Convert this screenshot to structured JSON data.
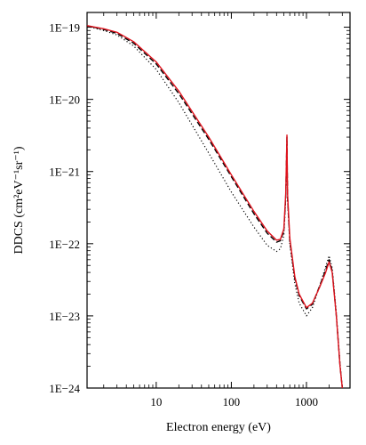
{
  "chart_data": {
    "type": "line",
    "xlabel": "Electron energy (eV)",
    "ylabel": "DDCS (cm²eV⁻¹sr⁻¹)",
    "xscale": "log",
    "yscale": "log",
    "xlim": [
      1.2,
      3800
    ],
    "ylim": [
      1e-24,
      1.6e-19
    ],
    "x_ticks": [
      {
        "value": 10,
        "label": "10"
      },
      {
        "value": 100,
        "label": "100"
      },
      {
        "value": 1000,
        "label": "1000"
      }
    ],
    "y_ticks": [
      {
        "value": 1e-19,
        "label": "1E−19"
      },
      {
        "value": 1e-20,
        "label": "1E−20"
      },
      {
        "value": 1e-21,
        "label": "1E−21"
      },
      {
        "value": 1e-22,
        "label": "1E−22"
      },
      {
        "value": 1e-23,
        "label": "1E−23"
      },
      {
        "value": 1e-24,
        "label": "1E−24"
      }
    ],
    "grid": false,
    "series": [
      {
        "style": "solid",
        "color": "#e0141e",
        "points": [
          [
            1.2,
            1.05e-19
          ],
          [
            2,
            9.5e-20
          ],
          [
            3,
            8.5e-20
          ],
          [
            5,
            6.3e-20
          ],
          [
            10,
            3.3e-20
          ],
          [
            20,
            1.3e-20
          ],
          [
            50,
            3e-21
          ],
          [
            100,
            9e-22
          ],
          [
            200,
            2.8e-22
          ],
          [
            300,
            1.5e-22
          ],
          [
            400,
            1.12e-22
          ],
          [
            450,
            1.15e-22
          ],
          [
            500,
            1.6e-22
          ],
          [
            530,
            5e-22
          ],
          [
            550,
            3.2e-21
          ],
          [
            560,
            5e-22
          ],
          [
            600,
            1.2e-22
          ],
          [
            700,
            3.5e-23
          ],
          [
            800,
            2e-23
          ],
          [
            1000,
            1.3e-23
          ],
          [
            1200,
            1.5e-23
          ],
          [
            1500,
            2.5e-23
          ],
          [
            1800,
            4e-23
          ],
          [
            2000,
            5.6e-23
          ],
          [
            2200,
            4e-23
          ],
          [
            2500,
            1e-23
          ],
          [
            2800,
            2e-24
          ],
          [
            3000,
            1e-24
          ]
        ]
      },
      {
        "style": "dashed",
        "color": "#000000",
        "points": [
          [
            1.2,
            1.05e-19
          ],
          [
            2,
            9.3e-20
          ],
          [
            3,
            8.2e-20
          ],
          [
            5,
            6e-20
          ],
          [
            10,
            3.1e-20
          ],
          [
            20,
            1.2e-20
          ],
          [
            50,
            2.8e-21
          ],
          [
            100,
            8.5e-22
          ],
          [
            200,
            2.6e-22
          ],
          [
            300,
            1.4e-22
          ],
          [
            400,
            1.05e-22
          ],
          [
            450,
            1.1e-22
          ],
          [
            500,
            1.5e-22
          ],
          [
            530,
            4.5e-22
          ],
          [
            550,
            3e-21
          ],
          [
            560,
            4.5e-22
          ],
          [
            600,
            1.1e-22
          ],
          [
            700,
            3.3e-23
          ],
          [
            800,
            1.9e-23
          ],
          [
            1000,
            1.25e-23
          ],
          [
            1200,
            1.45e-23
          ],
          [
            1500,
            2.6e-23
          ],
          [
            1800,
            4.3e-23
          ],
          [
            2000,
            6e-23
          ],
          [
            2200,
            4.2e-23
          ],
          [
            2500,
            1e-23
          ],
          [
            2800,
            2e-24
          ],
          [
            3000,
            1e-24
          ]
        ]
      },
      {
        "style": "dotted",
        "color": "#000000",
        "points": [
          [
            1.2,
            1.03e-19
          ],
          [
            2,
            9e-20
          ],
          [
            3,
            7.8e-20
          ],
          [
            5,
            5.5e-20
          ],
          [
            10,
            2.6e-20
          ],
          [
            20,
            9e-21
          ],
          [
            50,
            1.8e-21
          ],
          [
            100,
            5.2e-22
          ],
          [
            200,
            1.7e-22
          ],
          [
            300,
            9.5e-23
          ],
          [
            400,
            7.8e-23
          ],
          [
            450,
            8.5e-23
          ],
          [
            500,
            1.3e-22
          ],
          [
            530,
            4e-22
          ],
          [
            550,
            2.6e-21
          ],
          [
            560,
            4e-22
          ],
          [
            600,
            1e-22
          ],
          [
            700,
            2.8e-23
          ],
          [
            800,
            1.5e-23
          ],
          [
            1000,
            1e-23
          ],
          [
            1200,
            1.3e-23
          ],
          [
            1500,
            2.6e-23
          ],
          [
            1800,
            4.8e-23
          ],
          [
            2000,
            6.8e-23
          ],
          [
            2200,
            4.6e-23
          ],
          [
            2500,
            1.1e-23
          ],
          [
            2800,
            2.2e-24
          ],
          [
            3000,
            1e-24
          ]
        ]
      }
    ]
  }
}
